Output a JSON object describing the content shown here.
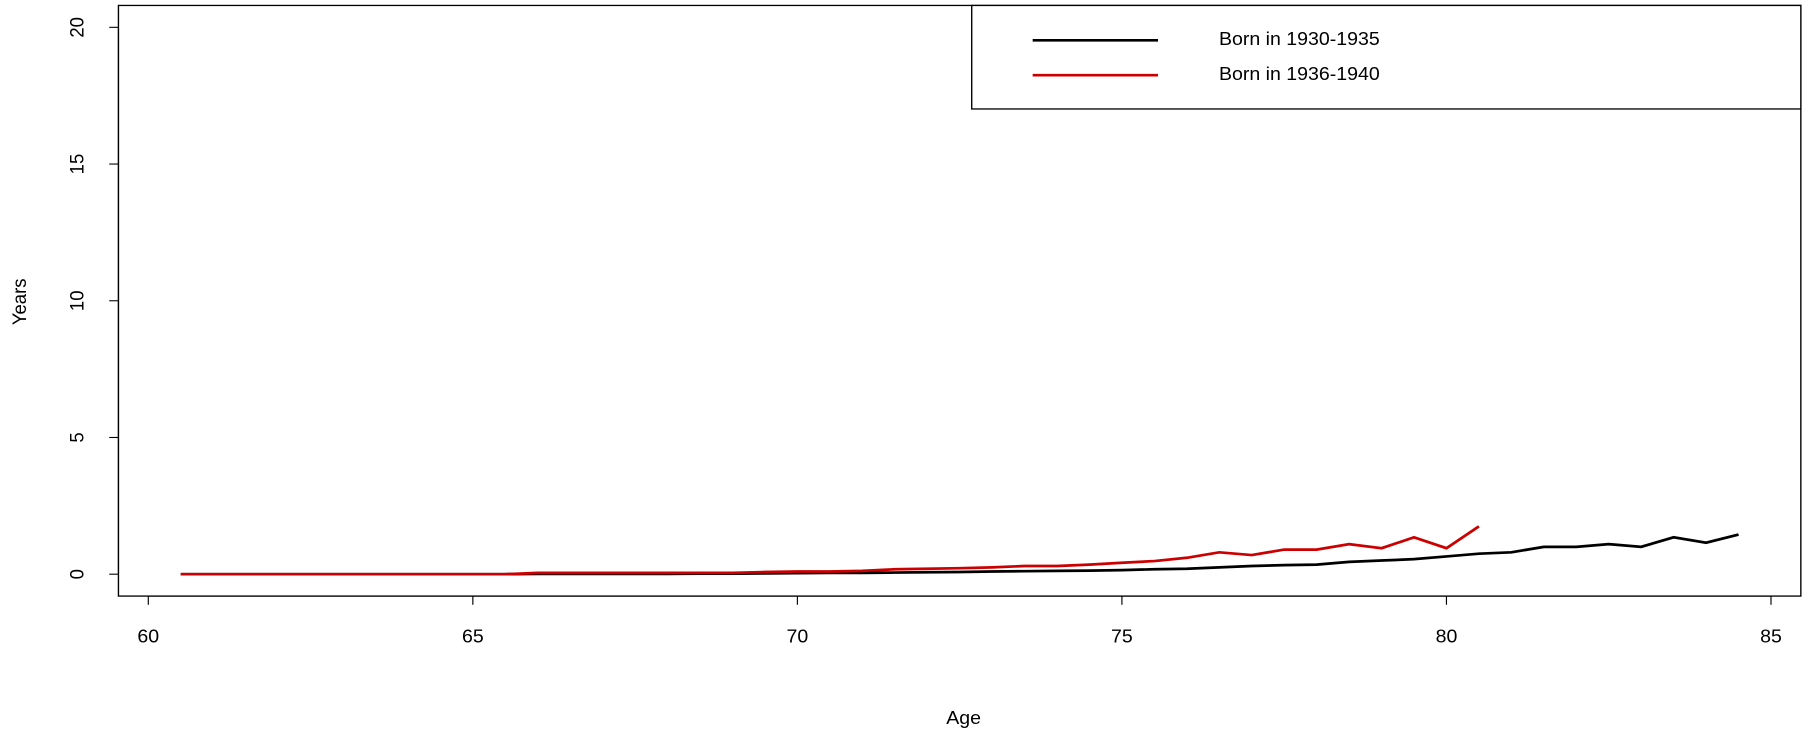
{
  "chart_data": {
    "type": "line",
    "x_label": "Age",
    "y_label": "Years",
    "xlim": [
      59.54,
      85.46
    ],
    "ylim": [
      -0.8,
      20.8
    ],
    "xticks": [
      60,
      65,
      70,
      75,
      80,
      85
    ],
    "yticks": [
      0,
      5,
      10,
      15,
      20
    ],
    "legend": "top-right",
    "series": [
      {
        "name": "Born in 1930-1935",
        "color": "#000000",
        "x": [
          60.5,
          61,
          61.5,
          62,
          62.5,
          63,
          63.5,
          64,
          64.5,
          65,
          65.5,
          66,
          66.5,
          67,
          67.5,
          68,
          68.5,
          69,
          69.5,
          70,
          70.5,
          71,
          71.5,
          72,
          72.5,
          73,
          73.5,
          74,
          74.5,
          75,
          75.5,
          76,
          76.5,
          77,
          77.5,
          78,
          78.5,
          79,
          79.5,
          80,
          80.5,
          81,
          81.5,
          82,
          82.5,
          83,
          83.5,
          84,
          84.5
        ],
        "values": [
          0,
          0,
          0,
          0,
          0,
          0,
          0,
          0,
          0,
          0,
          0,
          0.01,
          0.01,
          0.01,
          0.01,
          0.01,
          0.02,
          0.02,
          0.03,
          0.04,
          0.05,
          0.05,
          0.06,
          0.07,
          0.08,
          0.1,
          0.11,
          0.12,
          0.13,
          0.15,
          0.18,
          0.2,
          0.25,
          0.3,
          0.33,
          0.35,
          0.45,
          0.5,
          0.55,
          0.65,
          0.75,
          0.8,
          1.0,
          1.0,
          1.1,
          1.0,
          1.35,
          1.15,
          1.45
        ]
      },
      {
        "name": "Born in 1936-1940",
        "color": "#cc0000",
        "x": [
          60.5,
          61,
          61.5,
          62,
          62.5,
          63,
          63.5,
          64,
          64.5,
          65,
          65.5,
          66,
          66.5,
          67,
          67.5,
          68,
          68.5,
          69,
          69.5,
          70,
          70.5,
          71,
          71.5,
          72,
          72.5,
          73,
          73.5,
          74,
          74.5,
          75,
          75.5,
          76,
          76.5,
          77,
          77.5,
          78,
          78.5,
          79,
          79.5,
          80,
          80.5
        ],
        "values": [
          0,
          0,
          0,
          0,
          0,
          0,
          0,
          0,
          0,
          0,
          0,
          0.05,
          0.05,
          0.05,
          0.05,
          0.05,
          0.05,
          0.05,
          0.08,
          0.1,
          0.1,
          0.12,
          0.18,
          0.2,
          0.22,
          0.25,
          0.3,
          0.3,
          0.35,
          0.42,
          0.48,
          0.6,
          0.8,
          0.7,
          0.9,
          0.9,
          1.1,
          0.95,
          1.35,
          0.95,
          1.75
        ]
      }
    ]
  }
}
